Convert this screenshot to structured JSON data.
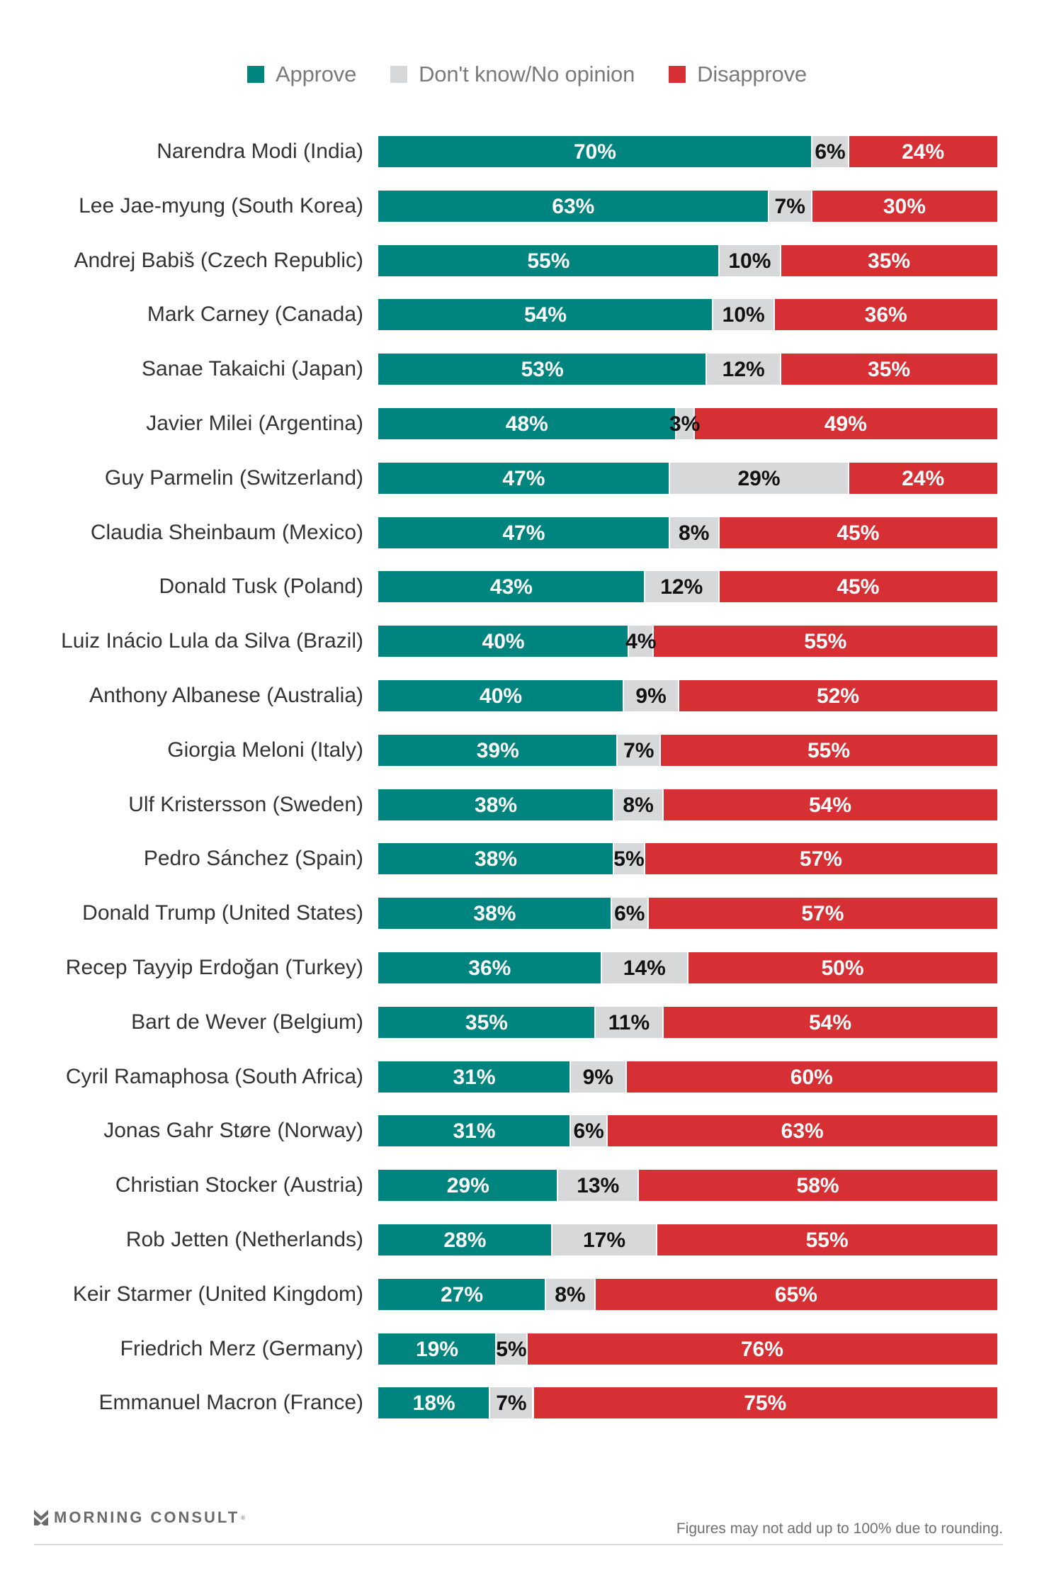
{
  "colors": {
    "approve": "#00847f",
    "dont_know": "#d6d8d9",
    "disapprove": "#d63035",
    "label_on_dark": "#ffffff",
    "label_on_light": "#111111"
  },
  "legend": [
    {
      "key": "approve",
      "label": "Approve"
    },
    {
      "key": "dont_know",
      "label": "Don't know/No opinion"
    },
    {
      "key": "disapprove",
      "label": "Disapprove"
    }
  ],
  "chart_data": {
    "type": "bar",
    "orientation": "horizontal",
    "stacked": true,
    "title": "",
    "xlabel": "",
    "ylabel": "",
    "xlim": [
      0,
      100
    ],
    "unit": "%",
    "legend_position": "top-center",
    "grid": false,
    "categories": [
      "Narendra Modi (India)",
      "Lee Jae-myung (South Korea)",
      "Andrej Babiš (Czech Republic)",
      "Mark Carney (Canada)",
      "Sanae Takaichi (Japan)",
      "Javier Milei (Argentina)",
      "Guy Parmelin (Switzerland)",
      "Claudia Sheinbaum (Mexico)",
      "Donald Tusk (Poland)",
      "Luiz Inácio Lula da Silva (Brazil)",
      "Anthony Albanese (Australia)",
      "Giorgia Meloni (Italy)",
      "Ulf Kristersson (Sweden)",
      "Pedro Sánchez (Spain)",
      "Donald Trump (United States)",
      "Recep Tayyip Erdoğan (Turkey)",
      "Bart de Wever (Belgium)",
      "Cyril Ramaphosa (South Africa)",
      "Jonas Gahr Støre (Norway)",
      "Christian Stocker (Austria)",
      "Rob Jetten (Netherlands)",
      "Keir Starmer (United Kingdom)",
      "Friedrich Merz (Germany)",
      "Emmanuel Macron (France)"
    ],
    "series": [
      {
        "name": "Approve",
        "key": "approve",
        "values": [
          70,
          63,
          55,
          54,
          53,
          48,
          47,
          47,
          43,
          40,
          40,
          39,
          38,
          38,
          38,
          36,
          35,
          31,
          31,
          29,
          28,
          27,
          19,
          18
        ]
      },
      {
        "name": "Don't know/No opinion",
        "key": "dont_know",
        "values": [
          6,
          7,
          10,
          10,
          12,
          3,
          29,
          8,
          12,
          4,
          9,
          7,
          8,
          5,
          6,
          14,
          11,
          9,
          6,
          13,
          17,
          8,
          5,
          7
        ]
      },
      {
        "name": "Disapprove",
        "key": "disapprove",
        "values": [
          24,
          30,
          35,
          36,
          35,
          49,
          24,
          45,
          45,
          55,
          52,
          55,
          54,
          57,
          57,
          50,
          54,
          60,
          63,
          58,
          55,
          65,
          76,
          75
        ]
      }
    ]
  },
  "footer": {
    "brand": "MORNING CONSULT",
    "brand_mark": "®",
    "note": "Figures may not add up to 100% due to rounding."
  }
}
